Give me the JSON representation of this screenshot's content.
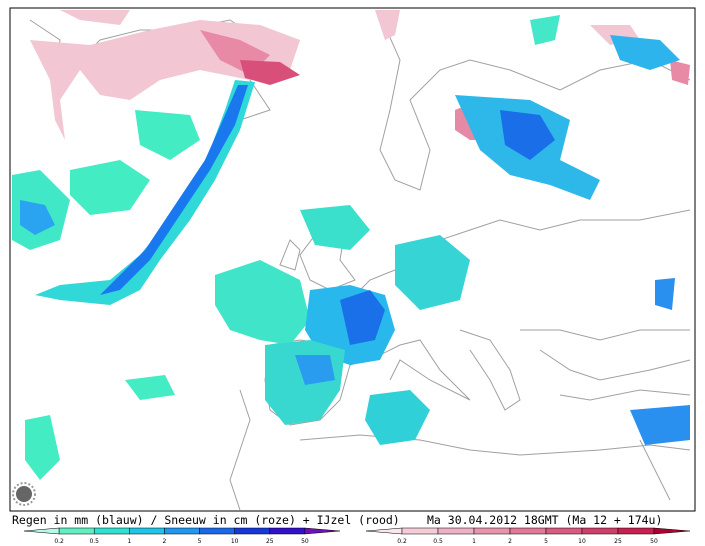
{
  "caption": {
    "left": "Regen in mm (blauw) / Sneeuw in cm (roze) + IJzel (rood)",
    "right": "Ma 30.04.2012 18GMT (Ma 12 + 174u)"
  },
  "legend_rain": {
    "ticks": [
      0.2,
      0.5,
      1,
      2,
      5,
      10,
      25,
      50
    ]
  },
  "legend_snow": {
    "ticks": [
      0.2,
      0.5,
      1,
      2,
      5,
      10,
      25,
      50
    ]
  }
}
